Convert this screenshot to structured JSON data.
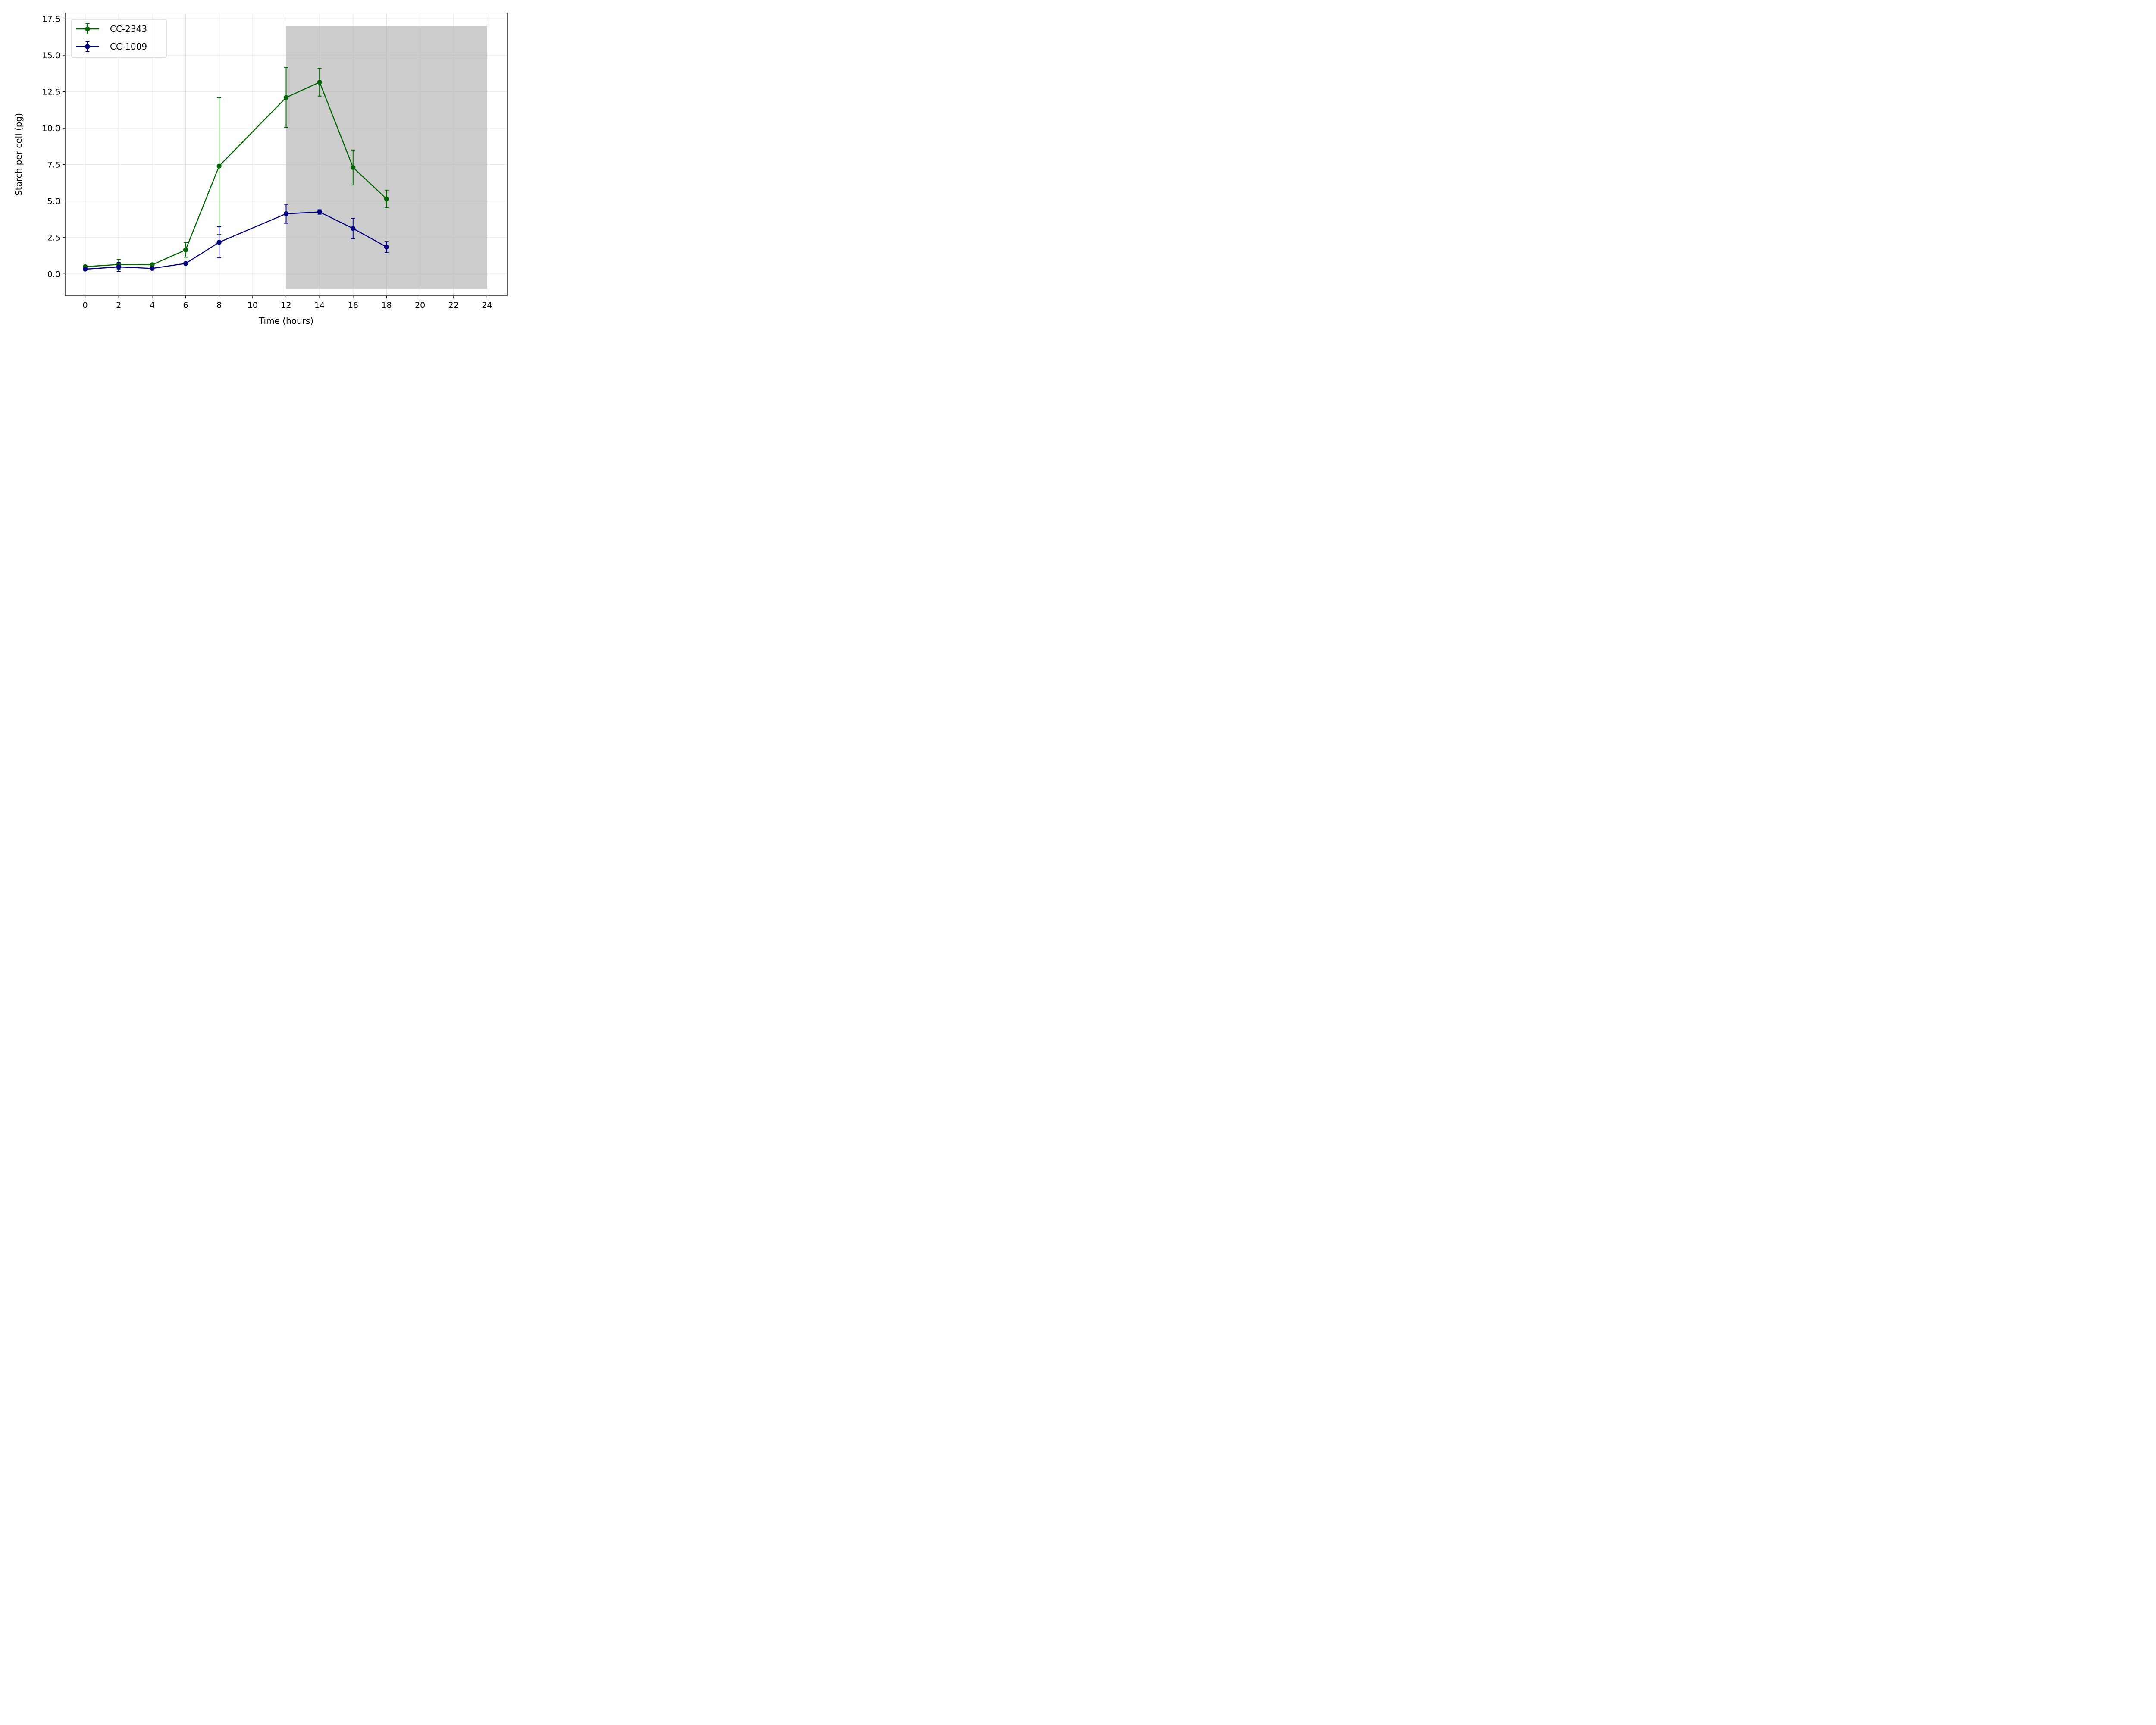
{
  "chart_data": {
    "type": "line",
    "title": "",
    "xlabel": "Time (hours)",
    "ylabel": "Starch per cell (pg)",
    "xlim": [
      -1.2,
      25.2
    ],
    "ylim": [
      -1.5,
      17.9
    ],
    "xticks": [
      0,
      2,
      4,
      6,
      8,
      10,
      12,
      14,
      16,
      18,
      20,
      22,
      24
    ],
    "xtick_labels": [
      "0",
      "2",
      "4",
      "6",
      "8",
      "10",
      "12",
      "14",
      "16",
      "18",
      "20",
      "22",
      "24"
    ],
    "yticks": [
      0.0,
      2.5,
      5.0,
      7.5,
      10.0,
      12.5,
      15.0,
      17.5
    ],
    "ytick_labels": [
      "0.0",
      "2.5",
      "5.0",
      "7.5",
      "10.0",
      "12.5",
      "15.0",
      "17.5"
    ],
    "grid": true,
    "legend_position": "top-left",
    "shaded_region": {
      "x": [
        12,
        24
      ],
      "y": [
        -1.0,
        17.0
      ],
      "color": "#cccccc"
    },
    "series": [
      {
        "name": "CC-2343",
        "color": "#006400",
        "x": [
          0,
          2,
          4,
          6,
          8,
          12,
          14,
          16,
          18
        ],
        "y": [
          0.5,
          0.65,
          0.63,
          1.65,
          7.4,
          12.1,
          13.15,
          7.3,
          5.15
        ],
        "err": [
          0.05,
          0.35,
          0.1,
          0.5,
          4.7,
          2.05,
          0.95,
          1.2,
          0.6
        ]
      },
      {
        "name": "CC-1009",
        "color": "#000080",
        "x": [
          0,
          2,
          4,
          6,
          8,
          12,
          14,
          16,
          18
        ],
        "y": [
          0.33,
          0.48,
          0.38,
          0.72,
          2.17,
          4.13,
          4.25,
          3.12,
          1.85
        ],
        "err": [
          0.05,
          0.3,
          0.08,
          0.08,
          1.07,
          0.65,
          0.15,
          0.7,
          0.37
        ]
      }
    ]
  }
}
